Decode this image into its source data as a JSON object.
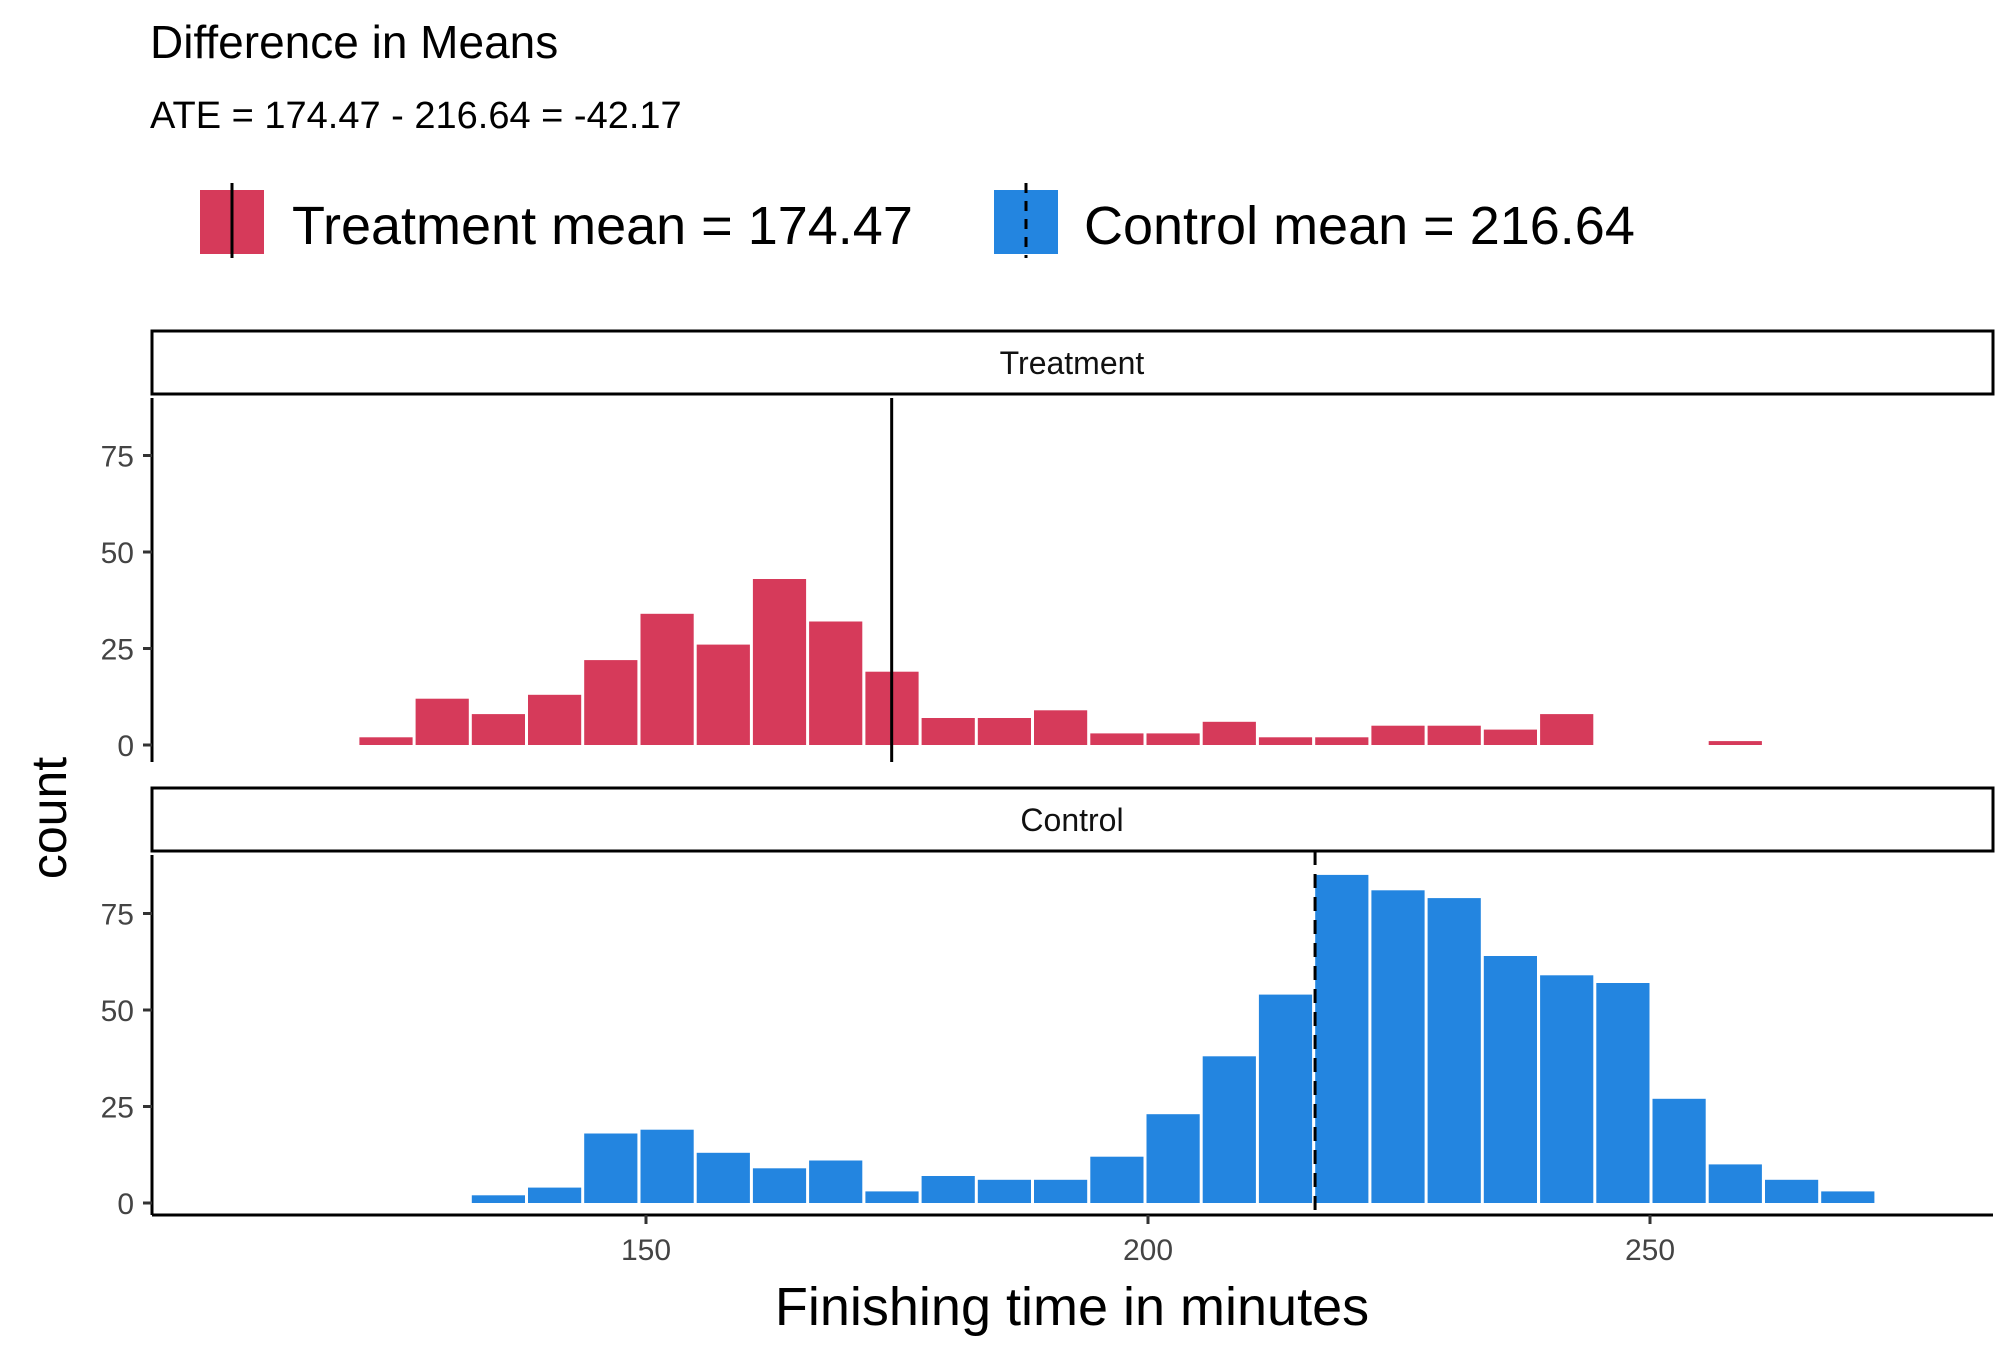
{
  "chart_data": {
    "type": "bar",
    "title": "Difference in Means",
    "subtitle": "ATE = 174.47 - 216.64 = -42.17",
    "xlabel": "Finishing time in minutes",
    "ylabel": "count",
    "xlim": [
      100,
      285
    ],
    "ylim": [
      0,
      90
    ],
    "x_ticks": [
      150,
      200,
      250
    ],
    "y_ticks": [
      0,
      25,
      50,
      75
    ],
    "grid": false,
    "legend_position": "top",
    "bin_width": 5.6,
    "bin_centers": [
      124.1,
      129.7,
      135.3,
      140.9,
      146.5,
      152.1,
      157.7,
      163.3,
      168.9,
      174.5,
      180.1,
      185.7,
      191.3,
      196.9,
      202.5,
      208.1,
      213.7,
      219.3,
      224.9,
      230.5,
      236.1,
      241.7,
      247.3,
      252.9,
      258.5,
      264.1,
      269.7
    ],
    "colors": {
      "treatment": "#d63a5a",
      "control": "#2385e0"
    },
    "series": [
      {
        "name": "Treatment",
        "strip_label": "Treatment",
        "legend_label": "Treatment mean = 174.47",
        "mean": 174.47,
        "mean_linetype": "solid",
        "values": [
          2,
          12,
          8,
          13,
          22,
          34,
          26,
          43,
          32,
          19,
          7,
          7,
          9,
          3,
          3,
          6,
          2,
          2,
          5,
          5,
          4,
          8,
          0,
          0,
          1,
          0,
          0
        ]
      },
      {
        "name": "Control",
        "strip_label": "Control",
        "legend_label": "Control mean = 216.64",
        "mean": 216.64,
        "mean_linetype": "dashed",
        "values": [
          0,
          0,
          2,
          4,
          18,
          19,
          13,
          9,
          11,
          3,
          7,
          6,
          6,
          12,
          23,
          38,
          54,
          85,
          81,
          79,
          64,
          59,
          57,
          27,
          10,
          6,
          3
        ]
      }
    ]
  }
}
